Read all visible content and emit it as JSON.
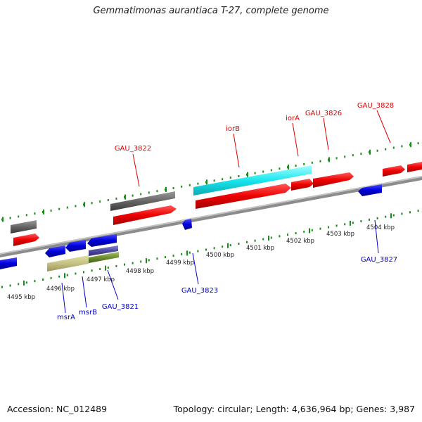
{
  "title": "Gemmatimonas aurantiaca T-27, complete genome",
  "footer": {
    "accession": "Accession: NC_012489",
    "summary": "Topology: circular; Length: 4,636,964 bp; Genes: 3,987"
  },
  "colors": {
    "forward_label": "#e00000",
    "reverse_label": "#0000cc",
    "backbone": "#8c8c8c",
    "tick": "#1a8a1a"
  },
  "kbp_labels": [
    "4495 kbp",
    "4496 kbp",
    "4497 kbp",
    "4498 kbp",
    "4499 kbp",
    "4500 kbp",
    "4501 kbp",
    "4502 kbp",
    "4503 kbp",
    "4504 kbp"
  ],
  "forward_labels": [
    "GAU_3822",
    "iorB",
    "iorA",
    "GAU_3826",
    "GAU_3828"
  ],
  "reverse_labels": [
    "msrA",
    "msrB",
    "GAU_3821",
    "GAU_3823",
    "GAU_3827"
  ]
}
